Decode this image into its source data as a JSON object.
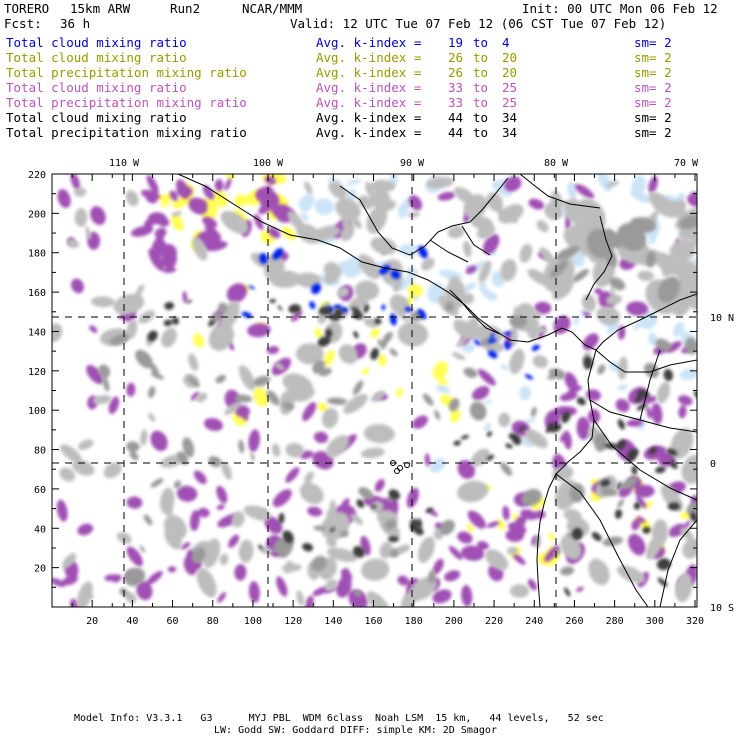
{
  "header": {
    "model": "TORERO",
    "resolution": "15km ARW",
    "run": "Run2",
    "org": "NCAR/MMM",
    "init": "Init: 00 UTC Mon 06 Feb 12",
    "fcst_label": "Fcst:",
    "fcst_value": "36 h",
    "valid": "Valid: 12 UTC Tue 07 Feb 12 (06 CST Tue 07 Feb 12)"
  },
  "legend": [
    {
      "field": "Total cloud mixing ratio",
      "avg": "Avg. k-index =",
      "k1": "19",
      "to": "to",
      "k2": "4",
      "sm": "sm= 2",
      "color": "#0000cc"
    },
    {
      "field": "Total cloud mixing ratio",
      "avg": "Avg. k-index =",
      "k1": "26",
      "to": "to",
      "k2": "20",
      "sm": "sm= 2",
      "color": "#999900"
    },
    {
      "field": "Total precipitation mixing ratio",
      "avg": "Avg. k-index =",
      "k1": "26",
      "to": "to",
      "k2": "20",
      "sm": "sm= 2",
      "color": "#999900"
    },
    {
      "field": "Total cloud mixing ratio",
      "avg": "Avg. k-index =",
      "k1": "33",
      "to": "to",
      "k2": "25",
      "sm": "sm= 2",
      "color": "#bb55bb"
    },
    {
      "field": "Total precipitation mixing ratio",
      "avg": "Avg. k-index =",
      "k1": "33",
      "to": "to",
      "k2": "25",
      "sm": "sm= 2",
      "color": "#bb55bb"
    },
    {
      "field": "Total cloud mixing ratio",
      "avg": "Avg. k-index =",
      "k1": "44",
      "to": "to",
      "k2": "34",
      "sm": "sm= 2",
      "color": "#000000"
    },
    {
      "field": "Total precipitation mixing ratio",
      "avg": "Avg. k-index =",
      "k1": "44",
      "to": "to",
      "k2": "34",
      "sm": "sm= 2",
      "color": "#000000"
    }
  ],
  "map": {
    "lon_labels": [
      "110 W",
      "100 W",
      "90 W",
      "80 W",
      "70 W"
    ],
    "lat_labels": [
      "10 N",
      "0",
      "10 S"
    ],
    "y_ticks": [
      "220",
      "200",
      "180",
      "160",
      "140",
      "120",
      "100",
      "80",
      "60",
      "40",
      "20"
    ],
    "x_ticks": [
      "20",
      "40",
      "60",
      "80",
      "100",
      "120",
      "140",
      "160",
      "180",
      "200",
      "220",
      "240",
      "260",
      "280",
      "300",
      "320"
    ],
    "colors": {
      "blue": "#0022ee",
      "lightblue": "#cce4f7",
      "yellow": "#ffff55",
      "purple": "#a050b4",
      "lightgray": "#bdbdbd",
      "gray": "#9a9a9a",
      "dark": "#3c3c3c"
    }
  },
  "footer": {
    "line1": "Model Info: V3.3.1   G3      MYJ PBL  WDM 6class  Noah LSM  15 km,   44 levels,   52 sec",
    "line2": "LW: Godd SW: Goddard DIFF: simple KM: 2D Smagor"
  }
}
